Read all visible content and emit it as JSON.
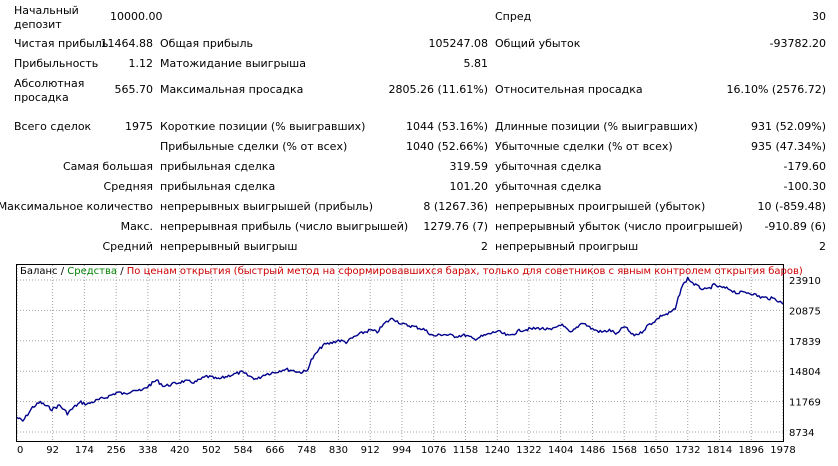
{
  "report": {
    "initial_deposit_label": "Начальный депозит",
    "initial_deposit": "10000.00",
    "spread_label": "Спред",
    "spread": "30",
    "net_profit_label": "Чистая прибыль",
    "net_profit": "11464.88",
    "gross_profit_label": "Общая прибыль",
    "gross_profit": "105247.08",
    "gross_loss_label": "Общий убыток",
    "gross_loss": "-93782.20",
    "profit_factor_label": "Прибыльность",
    "profit_factor": "1.12",
    "expected_payoff_label": "Матожидание выигрыша",
    "expected_payoff": "5.81",
    "abs_drawdown_label": "Абсолютная просадка",
    "abs_drawdown": "565.70",
    "max_drawdown_label": "Максимальная просадка",
    "max_drawdown": "2805.26 (11.61%)",
    "rel_drawdown_label": "Относительная просадка",
    "rel_drawdown": "16.10% (2576.72)",
    "total_trades_label": "Всего сделок",
    "total_trades": "1975",
    "short_positions_label": "Короткие позиции (% выигравших)",
    "short_positions": "1044 (53.16%)",
    "long_positions_label": "Длинные позиции (% выигравших)",
    "long_positions": "931 (52.09%)",
    "profit_trades_label": "Прибыльные сделки (% от всех)",
    "profit_trades": "1040 (52.66%)",
    "loss_trades_label": "Убыточные сделки (% от всех)",
    "loss_trades": "935 (47.34%)",
    "largest_label": "Самая большая",
    "largest_profit_label": "прибыльная сделка",
    "largest_profit": "319.59",
    "largest_loss_label": "убыточная сделка",
    "largest_loss": "-179.60",
    "average_label": "Средняя",
    "average_profit_label": "прибыльная сделка",
    "average_profit": "101.20",
    "average_loss_label": "убыточная сделка",
    "average_loss": "-100.30",
    "max_count_label": "Максимальное количество",
    "max_cons_wins_label": "непрерывных выигрышей (прибыль)",
    "max_cons_wins": "8 (1267.36)",
    "max_cons_losses_label": "непрерывных проигрышей (убыток)",
    "max_cons_losses": "10 (-859.48)",
    "max_label": "Макс.",
    "max_cons_profit_label": "непрерывная прибыль (число выигрышей)",
    "max_cons_profit": "1279.76 (7)",
    "max_cons_loss_label": "непрерывный убыток (число проигрышей)",
    "max_cons_loss": "-910.89 (6)",
    "avg_label": "Средний",
    "avg_cons_wins_label": "непрерывный выигрыш",
    "avg_cons_wins": "2",
    "avg_cons_losses_label": "непрерывный проигрыш",
    "avg_cons_losses": "2"
  },
  "legend": {
    "balance": "Баланс",
    "sep1": " / ",
    "equity": "Средства",
    "sep2": " / ",
    "method": "По ценам открытия (быстрый метод на сформировавшихся барах, только для советников с явным контролем открытия баров)"
  },
  "colors": {
    "balance_line": "#00008b",
    "equity_text": "#008000",
    "method_text": "#cc0000",
    "grid": "#a0a0a0"
  },
  "chart_data": {
    "type": "line",
    "title": "",
    "xlabel": "",
    "ylabel": "",
    "grid": true,
    "legend_position": "top-left",
    "x_ticks": [
      0,
      92,
      174,
      256,
      338,
      420,
      502,
      584,
      666,
      748,
      830,
      912,
      994,
      1076,
      1158,
      1240,
      1322,
      1404,
      1486,
      1568,
      1650,
      1732,
      1814,
      1896,
      1978
    ],
    "y_ticks": [
      "8734",
      "11769",
      "14804",
      "17839",
      "20875",
      "23910"
    ],
    "xlim": [
      0,
      1978
    ],
    "ylim": [
      8734,
      23910
    ],
    "series": [
      {
        "name": "Баланс",
        "x": [
          0,
          15,
          40,
          60,
          90,
          110,
          130,
          150,
          165,
          180,
          200,
          230,
          260,
          280,
          300,
          320,
          338,
          360,
          380,
          400,
          430,
          460,
          490,
          520,
          550,
          580,
          600,
          620,
          640,
          666,
          690,
          710,
          730,
          748,
          760,
          775,
          790,
          810,
          830,
          850,
          870,
          890,
          912,
          930,
          950,
          970,
          994,
          1020,
          1050,
          1076,
          1100,
          1130,
          1158,
          1180,
          1210,
          1240,
          1270,
          1300,
          1322,
          1350,
          1380,
          1404,
          1430,
          1460,
          1486,
          1510,
          1530,
          1550,
          1568,
          1590,
          1610,
          1630,
          1650,
          1665,
          1680,
          1700,
          1715,
          1732,
          1745,
          1760,
          1780,
          1800,
          1814,
          1840,
          1860,
          1880,
          1896,
          1920,
          1940,
          1960,
          1978
        ],
        "y": [
          10200,
          9800,
          11200,
          11700,
          11000,
          11400,
          10600,
          11300,
          11700,
          11500,
          11800,
          12200,
          12700,
          12500,
          13000,
          12800,
          13300,
          13900,
          13300,
          13500,
          13800,
          13700,
          14300,
          14000,
          14400,
          14700,
          14300,
          14000,
          14500,
          14700,
          15000,
          14900,
          14700,
          14800,
          15900,
          16700,
          17400,
          17600,
          17900,
          17700,
          18200,
          18600,
          18900,
          18700,
          19600,
          20100,
          19500,
          19300,
          19000,
          18300,
          18500,
          18300,
          18400,
          18000,
          18400,
          18800,
          18300,
          18900,
          19000,
          19100,
          18900,
          19500,
          18600,
          19700,
          19000,
          18700,
          18900,
          18500,
          19300,
          18400,
          18600,
          19400,
          19900,
          20400,
          20500,
          21000,
          23100,
          24100,
          23600,
          23200,
          22900,
          23400,
          23200,
          23000,
          22600,
          22700,
          22600,
          22200,
          22100,
          22000,
          21500
        ]
      }
    ]
  }
}
